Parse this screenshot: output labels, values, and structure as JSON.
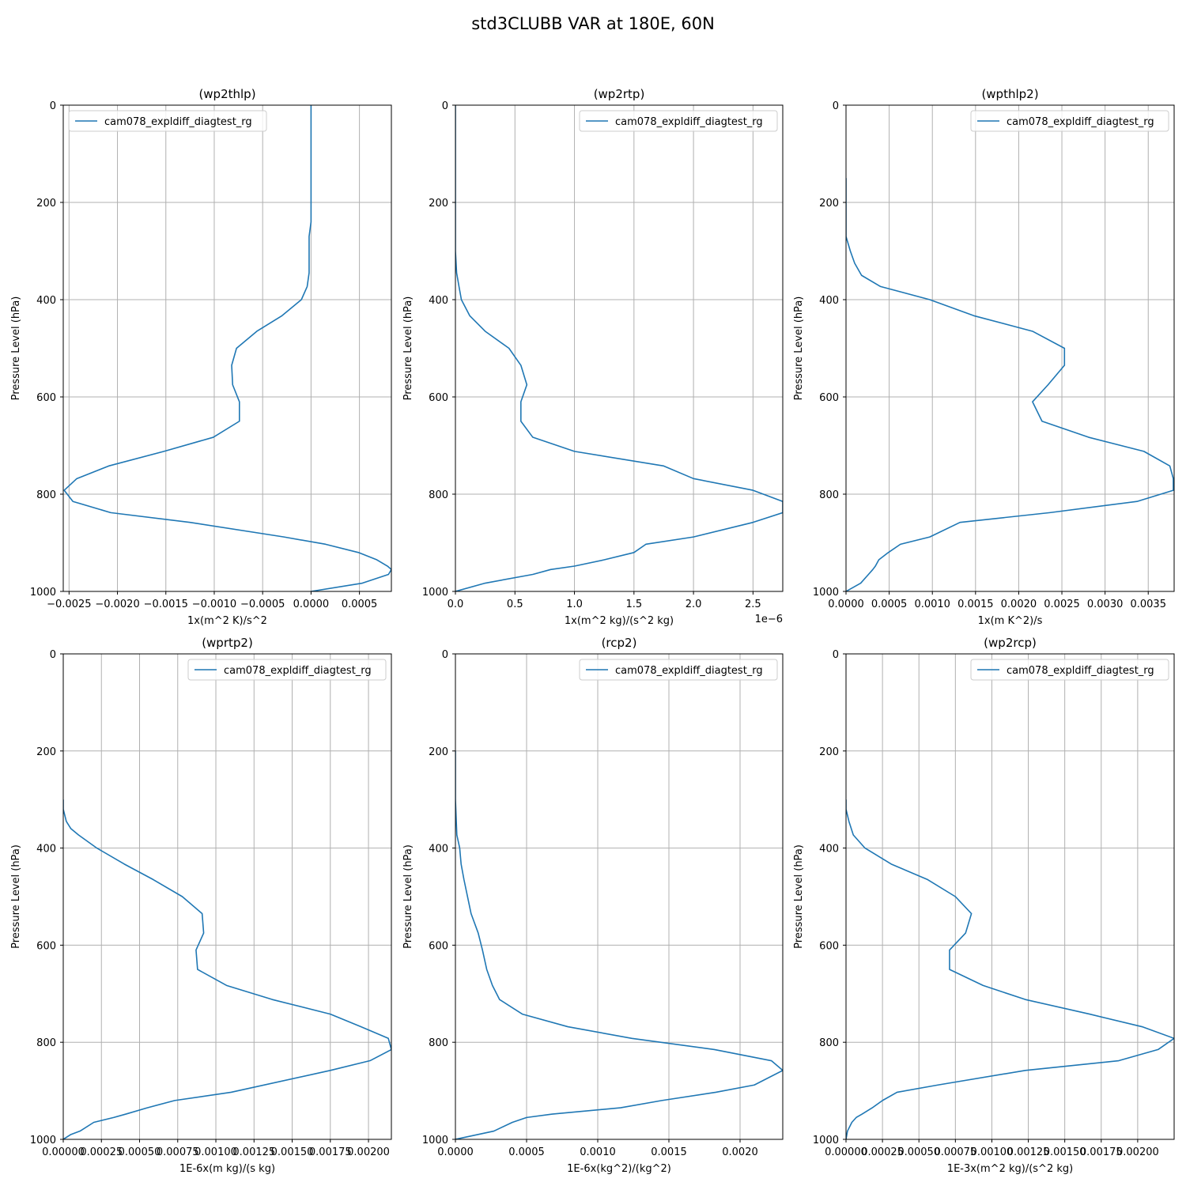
{
  "figure": {
    "title": "std3CLUBB VAR at 180E, 60N"
  },
  "colors": {
    "line": "#1f77b4",
    "grid": "#b0b0b0",
    "axis": "#000000",
    "legend_border": "#cccccc"
  },
  "chart_data": [
    {
      "type": "line",
      "title": "(wp2thlp)",
      "xlabel": "1x(m^2 K)/s^2",
      "ylabel": "Pressure Level (hPa)",
      "legend": "cam078_expldiff_diagtest_rg",
      "legend_loc": "upper left",
      "xlim": [
        -0.00256,
        0.00083
      ],
      "ylim": [
        1000,
        0
      ],
      "xticks": [
        -0.0025,
        -0.002,
        -0.0015,
        -0.001,
        -0.0005,
        0.0,
        0.0005
      ],
      "xtick_labels": [
        "−0.0025",
        "−0.0020",
        "−0.0015",
        "−0.0010",
        "−0.0005",
        "0.0000",
        "0.0005"
      ],
      "yticks": [
        0,
        200,
        400,
        600,
        800,
        1000
      ],
      "ytick_labels": [
        "0",
        "200",
        "400",
        "600",
        "800",
        "1000"
      ],
      "offset_label": "",
      "series": [
        {
          "name": "cam078_expldiff_diagtest_rg",
          "x": [
            0.0,
            0.0,
            0.0,
            0.0,
            -2e-05,
            -2e-05,
            -2e-05,
            -4e-05,
            -0.0001,
            -0.0003,
            -0.00056,
            -0.00077,
            -0.00082,
            -0.00081,
            -0.00074,
            -0.00074,
            -0.00101,
            -0.00152,
            -0.00209,
            -0.00242,
            -0.00255,
            -0.00246,
            -0.00207,
            -0.00125,
            -0.00028,
            0.00015,
            0.00049,
            0.00068,
            0.00079,
            0.00083,
            0.0008,
            0.00053,
            0.0
          ],
          "y": [
            0,
            100,
            200,
            240,
            270,
            300,
            345,
            373,
            400,
            433,
            465,
            500,
            535,
            575,
            610,
            650,
            683,
            712,
            742,
            768,
            792,
            815,
            838,
            858,
            888,
            903,
            920,
            935,
            948,
            955,
            965,
            983,
            1000
          ]
        }
      ]
    },
    {
      "type": "line",
      "title": "(wp2rtp)",
      "xlabel": "1x(m^2 kg)/(s^2 kg)",
      "ylabel": "Pressure Level (hPa)",
      "legend": "cam078_expldiff_diagtest_rg",
      "legend_loc": "upper right",
      "xlim": [
        0.0,
        2.75
      ],
      "ylim": [
        1000,
        0
      ],
      "xticks": [
        0.0,
        0.5,
        1.0,
        1.5,
        2.0,
        2.5
      ],
      "xtick_labels": [
        "0.0",
        "0.5",
        "1.0",
        "1.5",
        "2.0",
        "2.5"
      ],
      "yticks": [
        0,
        200,
        400,
        600,
        800,
        1000
      ],
      "ytick_labels": [
        "0",
        "200",
        "400",
        "600",
        "800",
        "1000"
      ],
      "offset_label": "1e−6",
      "series": [
        {
          "name": "cam078_expldiff_diagtest_rg",
          "x": [
            0.0,
            0.0,
            0.0,
            0.0,
            0.0,
            0.0,
            0.01,
            0.03,
            0.05,
            0.12,
            0.25,
            0.45,
            0.55,
            0.6,
            0.55,
            0.55,
            0.65,
            1.0,
            1.75,
            2.0,
            2.5,
            2.75,
            2.75,
            2.5,
            2.0,
            1.6,
            1.5,
            1.25,
            1.0,
            0.8,
            0.65,
            0.25,
            0.0
          ],
          "y": [
            0,
            100,
            200,
            240,
            270,
            300,
            345,
            373,
            400,
            433,
            465,
            500,
            535,
            575,
            610,
            650,
            683,
            712,
            742,
            768,
            792,
            815,
            838,
            858,
            888,
            903,
            920,
            935,
            948,
            955,
            965,
            983,
            1000
          ]
        }
      ]
    },
    {
      "type": "line",
      "title": "(wpthlp2)",
      "xlabel": "1x(m K^2)/s",
      "ylabel": "Pressure Level (hPa)",
      "legend": "cam078_expldiff_diagtest_rg",
      "legend_loc": "upper right",
      "xlim": [
        0.0,
        0.0038
      ],
      "ylim": [
        1000,
        0
      ],
      "xticks": [
        0.0,
        0.0005,
        0.001,
        0.0015,
        0.002,
        0.0025,
        0.003,
        0.0035
      ],
      "xtick_labels": [
        "0.0000",
        "0.0005",
        "0.0010",
        "0.0015",
        "0.0020",
        "0.0025",
        "0.0030",
        "0.0035"
      ],
      "yticks": [
        0,
        200,
        400,
        600,
        800,
        1000
      ],
      "ytick_labels": [
        "0",
        "200",
        "400",
        "600",
        "800",
        "1000"
      ],
      "offset_label": "",
      "series": [
        {
          "name": "cam078_expldiff_diagtest_rg",
          "x": [
            0.0,
            0.0,
            0.0,
            0.0,
            5e-05,
            0.0001,
            0.00018,
            0.0004,
            0.00097,
            0.00148,
            0.00216,
            0.00253,
            0.00253,
            0.00234,
            0.00216,
            0.00227,
            0.00281,
            0.00345,
            0.00375,
            0.00379,
            0.00379,
            0.00337,
            0.00236,
            0.00132,
            0.00097,
            0.00063,
            0.00049,
            0.00038,
            0.00034,
            0.00031,
            0.00026,
            0.00017,
            0.0
          ],
          "y": [
            150,
            200,
            240,
            270,
            300,
            325,
            350,
            373,
            400,
            433,
            465,
            500,
            535,
            575,
            610,
            650,
            683,
            712,
            742,
            768,
            792,
            815,
            838,
            858,
            888,
            903,
            920,
            935,
            948,
            955,
            965,
            983,
            1000
          ]
        }
      ]
    },
    {
      "type": "line",
      "title": "(wprtp2)",
      "xlabel": "1E-6x(m kg)/(s kg)",
      "ylabel": "Pressure Level (hPa)",
      "legend": "cam078_expldiff_diagtest_rg",
      "legend_loc": "upper right",
      "xlim": [
        0.0,
        0.00215
      ],
      "ylim": [
        1000,
        0
      ],
      "xticks": [
        0.0,
        0.00025,
        0.0005,
        0.00075,
        0.001,
        0.00125,
        0.0015,
        0.00175,
        0.002
      ],
      "xtick_labels": [
        "0.00000",
        "0.00025",
        "0.00050",
        "0.00075",
        "0.00100",
        "0.00125",
        "0.00150",
        "0.00175",
        "0.00200"
      ],
      "yticks": [
        0,
        200,
        400,
        600,
        800,
        1000
      ],
      "ytick_labels": [
        "0",
        "200",
        "400",
        "600",
        "800",
        "1000"
      ],
      "offset_label": "",
      "series": [
        {
          "name": "cam078_expldiff_diagtest_rg",
          "x": [
            0.0,
            0.0,
            2e-05,
            5e-05,
            0.0001,
            0.00022,
            0.0004,
            0.00059,
            0.00078,
            0.00091,
            0.00092,
            0.00087,
            0.00088,
            0.00107,
            0.00137,
            0.00175,
            0.00195,
            0.00213,
            0.00215,
            0.00201,
            0.00175,
            0.0011,
            0.00073,
            0.00055,
            0.00041,
            0.00033,
            0.0002,
            0.00011,
            5e-05,
            0.0
          ],
          "y": [
            300,
            320,
            345,
            360,
            373,
            400,
            433,
            465,
            500,
            535,
            575,
            610,
            650,
            683,
            712,
            742,
            768,
            792,
            815,
            838,
            858,
            903,
            920,
            935,
            948,
            955,
            965,
            983,
            990,
            1000
          ]
        }
      ]
    },
    {
      "type": "line",
      "title": "(rcp2)",
      "xlabel": "1E-6x(kg^2)/(kg^2)",
      "ylabel": "Pressure Level (hPa)",
      "legend": "cam078_expldiff_diagtest_rg",
      "legend_loc": "upper right",
      "xlim": [
        0.0,
        0.0023
      ],
      "ylim": [
        1000,
        0
      ],
      "xticks": [
        0.0,
        0.0005,
        0.001,
        0.0015,
        0.002
      ],
      "xtick_labels": [
        "0.0000",
        "0.0005",
        "0.0010",
        "0.0015",
        "0.0020"
      ],
      "yticks": [
        0,
        200,
        400,
        600,
        800,
        1000
      ],
      "ytick_labels": [
        "0",
        "200",
        "400",
        "600",
        "800",
        "1000"
      ],
      "offset_label": "",
      "series": [
        {
          "name": "cam078_expldiff_diagtest_rg",
          "x": [
            0.0,
            0.0,
            1e-05,
            3e-05,
            4e-05,
            6e-05,
            0.00011,
            0.00016,
            0.00019,
            0.00022,
            0.00026,
            0.00031,
            0.00047,
            0.00079,
            0.00124,
            0.00182,
            0.00222,
            0.0023,
            0.0021,
            0.00183,
            0.00145,
            0.00116,
            0.00068,
            0.0005,
            0.0004,
            0.00027,
            0.0
          ],
          "y": [
            200,
            300,
            373,
            400,
            433,
            465,
            535,
            575,
            610,
            650,
            683,
            712,
            742,
            768,
            792,
            815,
            838,
            858,
            888,
            903,
            920,
            935,
            948,
            955,
            965,
            983,
            1000
          ]
        }
      ]
    },
    {
      "type": "line",
      "title": "(wp2rcp)",
      "xlabel": "1E-3x(m^2 kg)/(s^2 kg)",
      "ylabel": "Pressure Level (hPa)",
      "legend": "cam078_expldiff_diagtest_rg",
      "legend_loc": "upper right",
      "xlim": [
        0.0,
        0.00225
      ],
      "ylim": [
        1000,
        0
      ],
      "xticks": [
        0.0,
        0.00025,
        0.0005,
        0.00075,
        0.001,
        0.00125,
        0.0015,
        0.00175,
        0.002
      ],
      "xtick_labels": [
        "0.00000",
        "0.00025",
        "0.00050",
        "0.00075",
        "0.00100",
        "0.00125",
        "0.00150",
        "0.00175",
        "0.00200"
      ],
      "yticks": [
        0,
        200,
        400,
        600,
        800,
        1000
      ],
      "ytick_labels": [
        "0",
        "200",
        "400",
        "600",
        "800",
        "1000"
      ],
      "offset_label": "",
      "series": [
        {
          "name": "cam078_expldiff_diagtest_rg",
          "x": [
            0.0,
            0.0,
            2e-05,
            5e-05,
            0.00013,
            0.00031,
            0.00056,
            0.00075,
            0.00086,
            0.00082,
            0.00071,
            0.00071,
            0.00094,
            0.00123,
            0.00167,
            0.00203,
            0.00225,
            0.00214,
            0.00187,
            0.00123,
            0.00063,
            0.00035,
            0.00025,
            0.00018,
            0.00011,
            7e-05,
            4e-05,
            1e-05,
            0.0
          ],
          "y": [
            300,
            320,
            345,
            373,
            400,
            433,
            465,
            500,
            535,
            575,
            610,
            650,
            683,
            712,
            742,
            768,
            792,
            815,
            838,
            858,
            888,
            903,
            920,
            935,
            948,
            955,
            965,
            983,
            1000
          ]
        }
      ]
    }
  ]
}
